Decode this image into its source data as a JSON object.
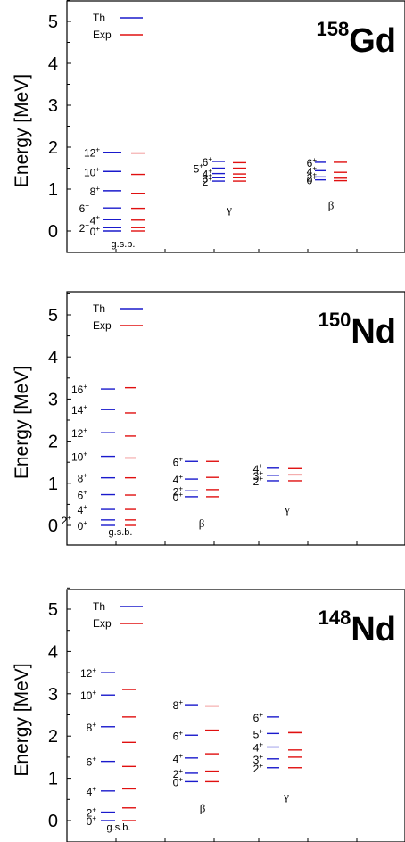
{
  "chart_data": [
    {
      "type": "level-scheme",
      "nucleus": {
        "mass": "158",
        "symbol": "Gd"
      },
      "ylabel": "Energy  [MeV]",
      "ylim": [
        -0.45,
        5.5
      ],
      "yticks": [
        "0",
        "1",
        "2",
        "3",
        "4",
        "5"
      ],
      "legend": [
        {
          "name": "Th",
          "color": "#1a1acc"
        },
        {
          "name": "Exp",
          "color": "#e01010"
        }
      ],
      "bands": [
        {
          "name": "g.s.b.",
          "levels": [
            {
              "spin": "0",
              "th": 0.0,
              "exp": 0.0
            },
            {
              "spin": "2",
              "th": 0.08,
              "exp": 0.08
            },
            {
              "spin": "4",
              "th": 0.27,
              "exp": 0.26
            },
            {
              "spin": "6",
              "th": 0.55,
              "exp": 0.54
            },
            {
              "spin": "8",
              "th": 0.96,
              "exp": 0.9
            },
            {
              "spin": "10",
              "th": 1.42,
              "exp": 1.35
            },
            {
              "spin": "12",
              "th": 1.88,
              "exp": 1.86
            }
          ]
        },
        {
          "name": "γ",
          "levels": [
            {
              "spin": "2",
              "th": 1.19,
              "exp": 1.19
            },
            {
              "spin": "3",
              "th": 1.27,
              "exp": 1.27
            },
            {
              "spin": "4",
              "th": 1.37,
              "exp": 1.36
            },
            {
              "spin": "5",
              "th": 1.5,
              "exp": 1.5
            },
            {
              "spin": "6",
              "th": 1.66,
              "exp": 1.63
            }
          ]
        },
        {
          "name": "β",
          "levels": [
            {
              "spin": "0",
              "th": 1.22,
              "exp": 1.2
            },
            {
              "spin": "2",
              "th": 1.29,
              "exp": 1.26
            },
            {
              "spin": "4",
              "th": 1.44,
              "exp": 1.4
            },
            {
              "spin": "6",
              "th": 1.64,
              "exp": 1.64
            }
          ]
        }
      ]
    },
    {
      "type": "level-scheme",
      "nucleus": {
        "mass": "150",
        "symbol": "Nd"
      },
      "ylabel": "Energy  [MeV]",
      "ylim": [
        -0.45,
        5.5
      ],
      "yticks": [
        "0",
        "1",
        "2",
        "3",
        "4",
        "5"
      ],
      "legend": [
        {
          "name": "Th",
          "color": "#1a1acc"
        },
        {
          "name": "Exp",
          "color": "#e01010"
        }
      ],
      "bands": [
        {
          "name": "g.s.b.",
          "levels": [
            {
              "spin": "0",
              "th": 0.0,
              "exp": 0.0
            },
            {
              "spin": "2",
              "th": 0.13,
              "exp": 0.13
            },
            {
              "spin": "4",
              "th": 0.38,
              "exp": 0.38
            },
            {
              "spin": "6",
              "th": 0.73,
              "exp": 0.72
            },
            {
              "spin": "8",
              "th": 1.13,
              "exp": 1.13
            },
            {
              "spin": "10",
              "th": 1.64,
              "exp": 1.6
            },
            {
              "spin": "12",
              "th": 2.2,
              "exp": 2.12
            },
            {
              "spin": "14",
              "th": 2.75,
              "exp": 2.67
            },
            {
              "spin": "16",
              "th": 3.24,
              "exp": 3.27
            }
          ]
        },
        {
          "name": "β",
          "levels": [
            {
              "spin": "0",
              "th": 0.68,
              "exp": 0.68
            },
            {
              "spin": "2",
              "th": 0.82,
              "exp": 0.85
            },
            {
              "spin": "4",
              "th": 1.1,
              "exp": 1.14
            },
            {
              "spin": "6",
              "th": 1.52,
              "exp": 1.52
            }
          ]
        },
        {
          "name": "γ",
          "levels": [
            {
              "spin": "2",
              "th": 1.06,
              "exp": 1.06
            },
            {
              "spin": "3",
              "th": 1.19,
              "exp": 1.2
            },
            {
              "spin": "4",
              "th": 1.36,
              "exp": 1.35
            }
          ]
        }
      ]
    },
    {
      "type": "level-scheme",
      "nucleus": {
        "mass": "148",
        "symbol": "Nd"
      },
      "ylabel": "Energy  [MeV]",
      "ylim": [
        -0.45,
        5.5
      ],
      "yticks": [
        "0",
        "1",
        "2",
        "3",
        "4",
        "5"
      ],
      "legend": [
        {
          "name": "Th",
          "color": "#1a1acc"
        },
        {
          "name": "Exp",
          "color": "#e01010"
        }
      ],
      "bands": [
        {
          "name": "g.s.b.",
          "levels": [
            {
              "spin": "0",
              "th": 0.0,
              "exp": 0.0
            },
            {
              "spin": "2",
              "th": 0.2,
              "exp": 0.3
            },
            {
              "spin": "4",
              "th": 0.7,
              "exp": 0.75
            },
            {
              "spin": "6",
              "th": 1.4,
              "exp": 1.28
            },
            {
              "spin": "8",
              "th": 2.22,
              "exp": 1.85
            },
            {
              "spin": "10",
              "th": 2.97,
              "exp": 2.45
            },
            {
              "spin": "12",
              "th": 3.5,
              "exp": 3.1
            }
          ]
        },
        {
          "name": "β",
          "levels": [
            {
              "spin": "0",
              "th": 0.92,
              "exp": 0.92
            },
            {
              "spin": "2",
              "th": 1.12,
              "exp": 1.17
            },
            {
              "spin": "4",
              "th": 1.48,
              "exp": 1.58
            },
            {
              "spin": "6",
              "th": 2.02,
              "exp": 2.14
            },
            {
              "spin": "8",
              "th": 2.74,
              "exp": 2.71
            }
          ]
        },
        {
          "name": "γ",
          "levels": [
            {
              "spin": "2",
              "th": 1.25,
              "exp": 1.25
            },
            {
              "spin": "3",
              "th": 1.46,
              "exp": 1.5
            },
            {
              "spin": "4",
              "th": 1.74,
              "exp": 1.67
            },
            {
              "spin": "5",
              "th": 2.06,
              "exp": 2.08
            },
            {
              "spin": "6",
              "th": 2.45,
              "exp": 2.08
            }
          ]
        }
      ]
    }
  ]
}
